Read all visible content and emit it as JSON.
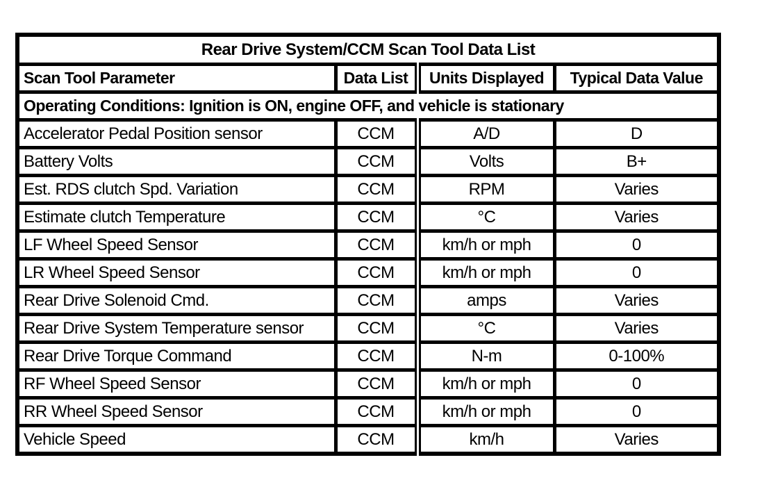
{
  "table": {
    "title": "Rear Drive System/CCM Scan Tool Data List",
    "columns": [
      "Scan Tool Parameter",
      "Data List",
      "Units Displayed",
      "Typical Data Value"
    ],
    "operating_conditions": "Operating Conditions: Ignition is ON, engine OFF, and vehicle is stationary",
    "rows": [
      [
        "Accelerator Pedal Position sensor",
        "CCM",
        "A/D",
        "D"
      ],
      [
        "Battery Volts",
        "CCM",
        "Volts",
        "B+"
      ],
      [
        "Est. RDS clutch Spd. Variation",
        "CCM",
        "RPM",
        "Varies"
      ],
      [
        "Estimate clutch Temperature",
        "CCM",
        "°C",
        "Varies"
      ],
      [
        "LF Wheel Speed Sensor",
        "CCM",
        "km/h or mph",
        "0"
      ],
      [
        "LR Wheel Speed Sensor",
        "CCM",
        "km/h or mph",
        "0"
      ],
      [
        "Rear Drive Solenoid Cmd.",
        "CCM",
        "amps",
        "Varies"
      ],
      [
        "Rear Drive System Temperature sensor",
        "CCM",
        "°C",
        "Varies"
      ],
      [
        "Rear Drive Torque Command",
        "CCM",
        "N-m",
        "0-100%"
      ],
      [
        "RF Wheel Speed Sensor",
        "CCM",
        "km/h or mph",
        "0"
      ],
      [
        "RR Wheel Speed Sensor",
        "CCM",
        "km/h or mph",
        "0"
      ],
      [
        "Vehicle Speed",
        "CCM",
        "km/h",
        "Varies"
      ]
    ],
    "colors": {
      "border": "#000000",
      "background": "#ffffff",
      "text": "#000000"
    }
  }
}
